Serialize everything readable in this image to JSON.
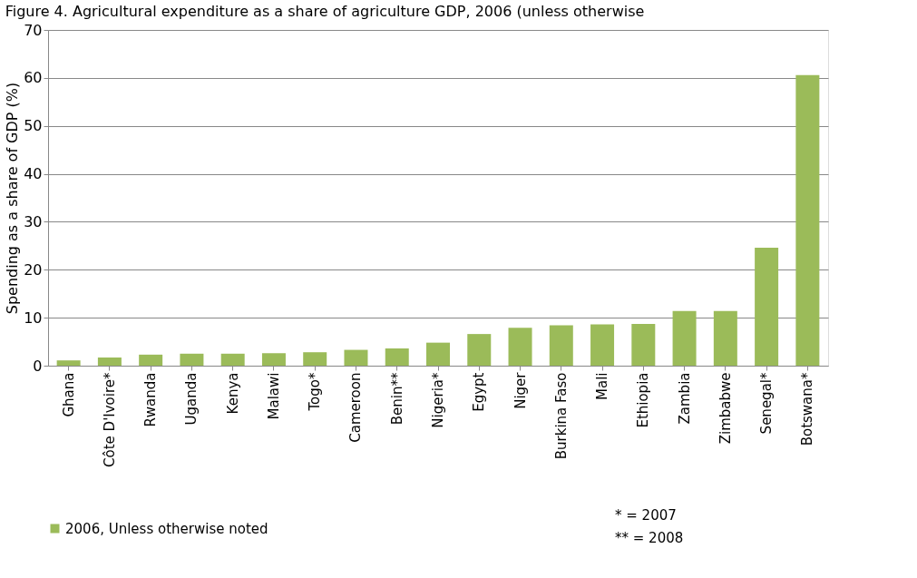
{
  "chart_data": {
    "type": "bar",
    "title": "Figure 4. Agricultural expenditure as a share of agriculture GDP, 2006 (unless otherwise",
    "ylabel": "Spending as a share of  GDP (%)",
    "categories": [
      "Ghana",
      "Côte D'Ivoire*",
      "Rwanda",
      "Uganda",
      "Kenya",
      "Malawi",
      "Togo*",
      "Cameroon",
      "Benin**",
      "Nigeria*",
      "Egypt",
      "Niger",
      "Burkina Faso",
      "Mali",
      "Ethiopia",
      "Zambia",
      "Zimbabwe",
      "Senegal*",
      "Botswana*"
    ],
    "series": [
      {
        "name": "2006, Unless otherwise noted",
        "color": "#9bbb59",
        "values": [
          1.1,
          1.7,
          2.3,
          2.5,
          2.5,
          2.6,
          2.8,
          3.3,
          3.6,
          4.8,
          6.6,
          7.9,
          8.4,
          8.6,
          8.7,
          11.4,
          11.4,
          24.6,
          60.6
        ]
      }
    ],
    "ylim": [
      0,
      70
    ],
    "yticks": [
      0,
      10,
      20,
      30,
      40,
      50,
      60,
      70
    ],
    "grid": "y",
    "legend": "bottom",
    "annotations": [
      "* = 2007",
      "** = 2008"
    ]
  }
}
